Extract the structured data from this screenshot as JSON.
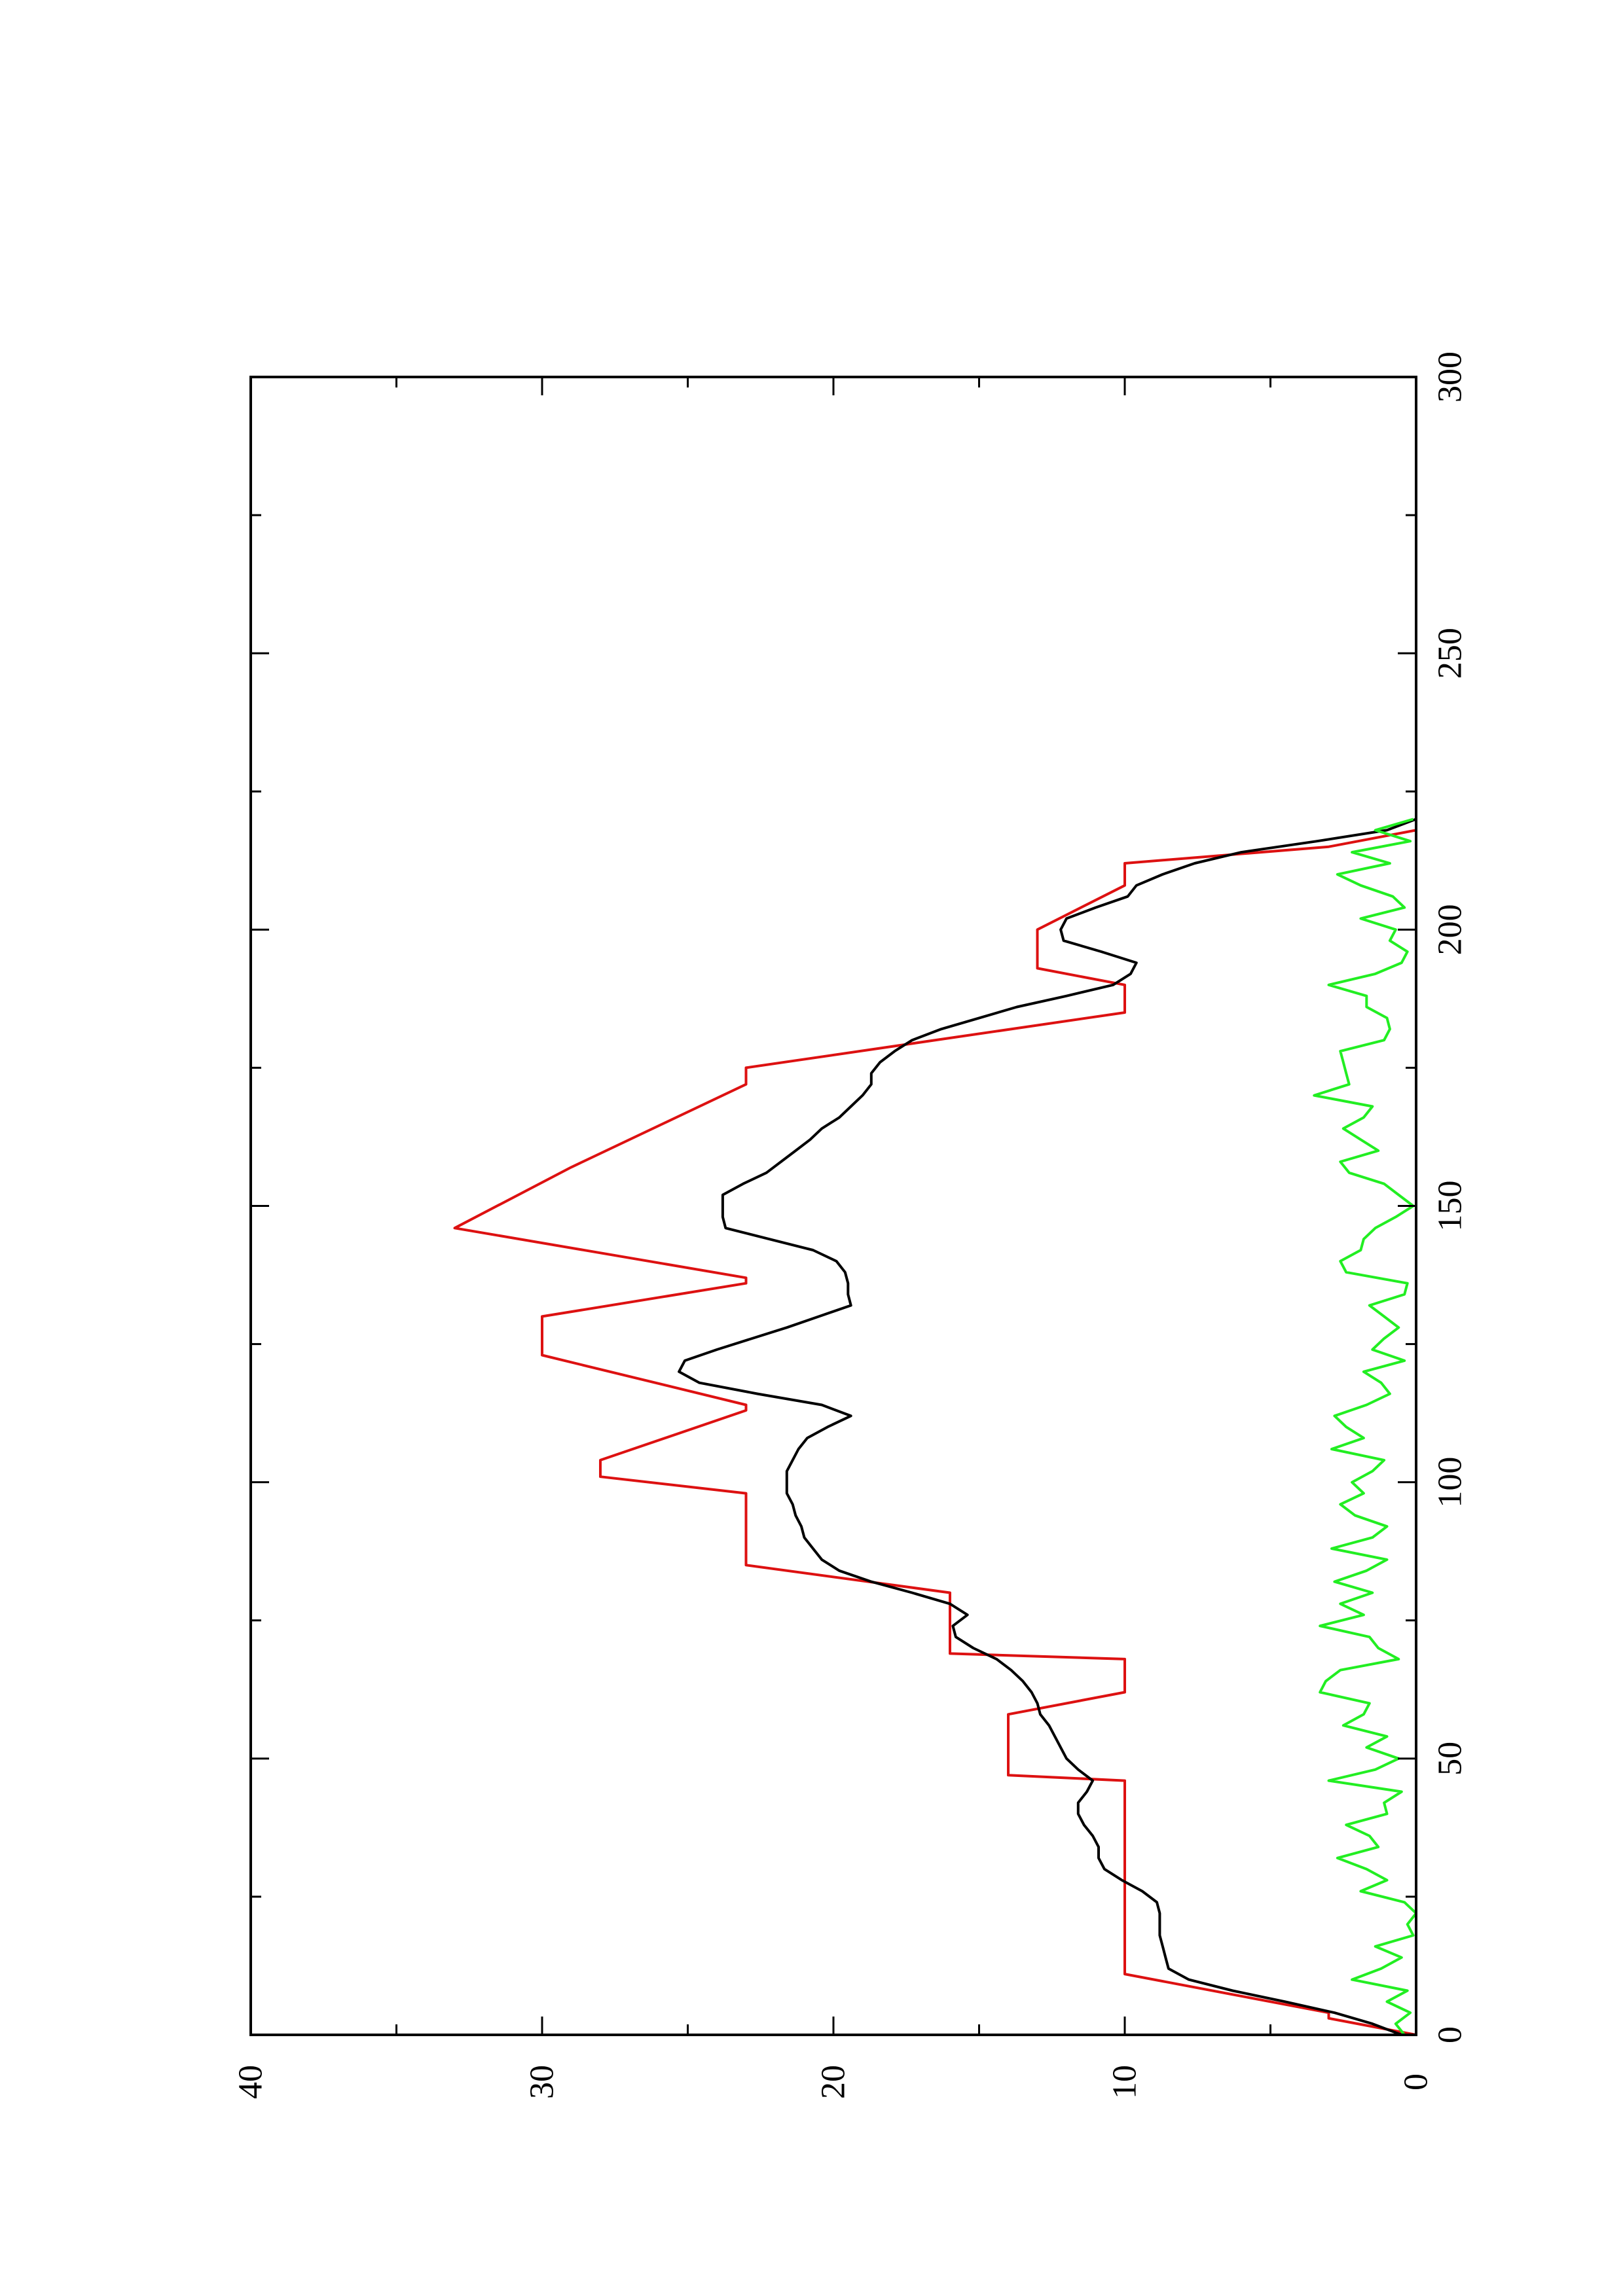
{
  "chart_data": {
    "type": "line",
    "orientation": "rotated-90-ccw",
    "title": "",
    "xlabel": "",
    "ylabel": "",
    "xlim": [
      0,
      300
    ],
    "ylim": [
      0,
      40
    ],
    "x_ticks": [
      "0",
      "50",
      "100",
      "150",
      "200",
      "250",
      "300"
    ],
    "y_ticks": [
      "0",
      "10",
      "20",
      "30",
      "40"
    ],
    "grid": false,
    "legend": "none",
    "series": [
      {
        "color": "#dd1111",
        "x": [
          0,
          3,
          4,
          11,
          46,
          47,
          58,
          62,
          68,
          69,
          80,
          85,
          98,
          101,
          104,
          113,
          114,
          123,
          130,
          136,
          137,
          146,
          157,
          172,
          175,
          185,
          190,
          193,
          200,
          208,
          212,
          215,
          218
        ],
        "y": [
          0,
          3,
          3,
          10,
          10,
          14,
          14,
          10,
          10,
          16,
          16,
          23,
          23,
          28,
          28,
          23,
          23,
          30,
          30,
          23,
          23,
          33,
          29,
          23,
          23,
          10,
          10,
          13,
          13,
          10,
          10,
          3,
          0
        ]
      },
      {
        "color": "#000000",
        "x": [
          0,
          2,
          4,
          6,
          8,
          10,
          12,
          14,
          16,
          18,
          20,
          22,
          24,
          26,
          28,
          30,
          32,
          34,
          36,
          38,
          40,
          42,
          44,
          46,
          48,
          50,
          52,
          54,
          56,
          58,
          60,
          62,
          64,
          66,
          68,
          70,
          72,
          74,
          76,
          78,
          80,
          82,
          84,
          86,
          88,
          90,
          92,
          94,
          96,
          98,
          100,
          102,
          104,
          106,
          108,
          110,
          112,
          114,
          116,
          118,
          120,
          122,
          124,
          126,
          128,
          130,
          132,
          134,
          136,
          138,
          140,
          142,
          144,
          146,
          148,
          150,
          152,
          154,
          156,
          158,
          160,
          162,
          164,
          166,
          168,
          170,
          172,
          174,
          176,
          178,
          180,
          182,
          184,
          186,
          188,
          190,
          192,
          194,
          196,
          198,
          200,
          202,
          204,
          206,
          208,
          210,
          212,
          214,
          216,
          218,
          220
        ],
        "y": [
          0.5,
          1.5,
          2.8,
          4.5,
          6.3,
          7.8,
          8.5,
          8.6,
          8.7,
          8.8,
          8.8,
          8.8,
          8.9,
          9.4,
          10.1,
          10.7,
          10.9,
          10.9,
          11.1,
          11.4,
          11.6,
          11.6,
          11.3,
          11.1,
          11.6,
          12.0,
          12.2,
          12.4,
          12.6,
          12.9,
          13.0,
          13.2,
          13.5,
          13.9,
          14.4,
          15.2,
          15.8,
          15.9,
          15.4,
          16.0,
          17.3,
          18.7,
          19.8,
          20.4,
          20.7,
          21.0,
          21.1,
          21.3,
          21.4,
          21.6,
          21.6,
          21.6,
          21.4,
          21.2,
          20.9,
          20.2,
          19.4,
          20.4,
          22.6,
          24.6,
          25.3,
          25.1,
          24.0,
          22.8,
          21.6,
          20.5,
          19.4,
          19.5,
          19.5,
          19.6,
          19.9,
          20.7,
          22.2,
          23.7,
          23.8,
          23.8,
          23.8,
          23.1,
          22.3,
          21.8,
          21.3,
          20.8,
          20.4,
          19.8,
          19.4,
          19.0,
          18.7,
          18.7,
          18.4,
          17.9,
          17.3,
          16.3,
          15.0,
          13.7,
          12.0,
          10.4,
          9.8,
          9.6,
          10.8,
          12.1,
          12.2,
          12.0,
          11.0,
          9.9,
          9.6,
          8.7,
          7.6,
          6.0,
          3.4,
          1.0,
          0.0
        ]
      },
      {
        "color": "#22ee22",
        "x": [
          0,
          2,
          4,
          6,
          8,
          10,
          12,
          14,
          16,
          18,
          20,
          22,
          24,
          26,
          28,
          30,
          32,
          34,
          36,
          38,
          40,
          42,
          44,
          46,
          48,
          50,
          52,
          54,
          56,
          58,
          60,
          62,
          64,
          66,
          68,
          70,
          72,
          74,
          76,
          78,
          80,
          82,
          84,
          86,
          88,
          90,
          92,
          94,
          96,
          98,
          100,
          102,
          104,
          106,
          108,
          110,
          112,
          114,
          116,
          118,
          120,
          122,
          124,
          126,
          128,
          130,
          132,
          134,
          136,
          138,
          140,
          142,
          144,
          146,
          148,
          150,
          152,
          154,
          156,
          158,
          160,
          162,
          164,
          166,
          168,
          170,
          172,
          174,
          176,
          178,
          180,
          182,
          184,
          186,
          188,
          190,
          192,
          194,
          196,
          198,
          200,
          202,
          204,
          206,
          208,
          210,
          212,
          214,
          216,
          218,
          220
        ],
        "y": [
          0.4,
          0.7,
          0.2,
          1.0,
          0.3,
          2.2,
          1.2,
          0.5,
          1.4,
          0.1,
          0.3,
          0.0,
          0.4,
          1.9,
          1.0,
          1.7,
          2.7,
          1.3,
          1.6,
          2.4,
          1.0,
          1.1,
          0.5,
          3.0,
          1.4,
          0.6,
          1.7,
          1.0,
          2.5,
          1.8,
          1.6,
          3.3,
          3.1,
          2.6,
          0.6,
          1.3,
          1.6,
          3.3,
          1.8,
          2.6,
          1.5,
          2.8,
          1.7,
          1.0,
          2.9,
          1.5,
          1.0,
          2.1,
          2.6,
          1.8,
          2.2,
          1.5,
          1.1,
          2.9,
          1.8,
          2.4,
          2.8,
          1.7,
          0.9,
          1.2,
          1.8,
          0.4,
          1.5,
          1.1,
          0.6,
          1.1,
          1.6,
          0.4,
          0.3,
          2.4,
          2.6,
          1.9,
          1.8,
          1.4,
          0.7,
          0.1,
          0.6,
          1.1,
          2.3,
          2.6,
          1.3,
          1.9,
          2.5,
          1.8,
          1.5,
          3.5,
          2.3,
          2.4,
          2.5,
          2.6,
          1.1,
          0.9,
          1.0,
          1.7,
          1.7,
          3.0,
          1.4,
          0.5,
          0.3,
          0.9,
          0.7,
          1.9,
          0.4,
          0.8,
          1.9,
          2.7,
          0.9,
          2.2,
          0.2,
          1.4,
          0.1
        ]
      }
    ]
  }
}
